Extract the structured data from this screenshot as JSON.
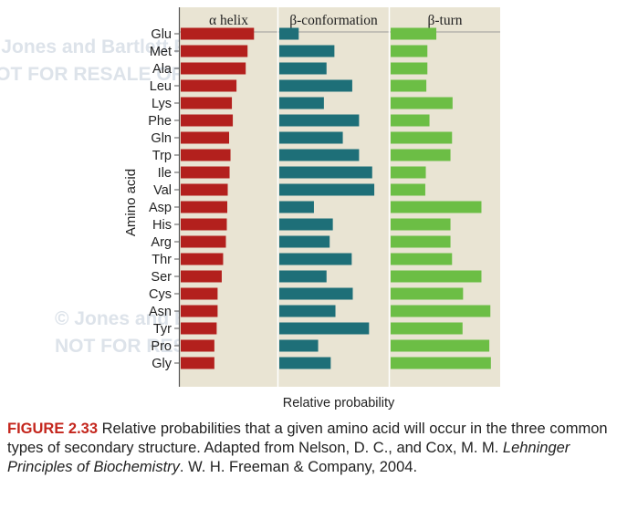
{
  "chart_data": {
    "type": "bar",
    "layout": "three horizontal bar panels sharing the amino-acid axis",
    "ylabel": "Amino acid",
    "xlabel": "Relative probability",
    "categories": [
      "Glu",
      "Met",
      "Ala",
      "Leu",
      "Lys",
      "Phe",
      "Gln",
      "Trp",
      "Ile",
      "Val",
      "Asp",
      "His",
      "Arg",
      "Thr",
      "Ser",
      "Cys",
      "Asn",
      "Tyr",
      "Pro",
      "Gly"
    ],
    "series": [
      {
        "name": "α helix",
        "color": "#b3201d",
        "values": [
          1.59,
          1.45,
          1.41,
          1.21,
          1.11,
          1.13,
          1.05,
          1.08,
          1.06,
          1.02,
          1.01,
          1.0,
          0.98,
          0.92,
          0.89,
          0.8,
          0.8,
          0.78,
          0.73,
          0.73
        ]
      },
      {
        "name": "β-conformation",
        "color": "#1e6f78",
        "values": [
          0.37,
          1.05,
          0.9,
          1.39,
          0.85,
          1.52,
          1.21,
          1.52,
          1.77,
          1.81,
          0.66,
          1.02,
          0.96,
          1.38,
          0.9,
          1.4,
          1.07,
          1.71,
          0.74,
          0.98
        ]
      },
      {
        "name": "β-turn",
        "color": "#6cbe45",
        "values": [
          0.87,
          0.7,
          0.7,
          0.68,
          1.18,
          0.74,
          1.17,
          1.14,
          0.67,
          0.66,
          1.73,
          1.14,
          1.14,
          1.17,
          1.73,
          1.38,
          1.9,
          1.37,
          1.88,
          1.91
        ]
      }
    ],
    "grid": false,
    "legend": "panel headers at top"
  },
  "caption": {
    "label": "FIGURE 2.33",
    "text_before": " Relative probabilities that a given amino acid will occur in the three common types of secondary structure. Adapted from Nelson, D. C., and Cox, M. M. ",
    "book_title": "Lehninger Principles of Biochemistry",
    "text_after": ". W. H. Freeman & Company, 2004."
  },
  "watermark": {
    "lines": [
      "© Jones and Bartlett Publishers",
      "NOT FOR RESALE OR DISTRIBUTION",
      "© Jones and Bartlett Publishers",
      "NOT FOR RESALE OR DISTRIBUTION"
    ]
  }
}
